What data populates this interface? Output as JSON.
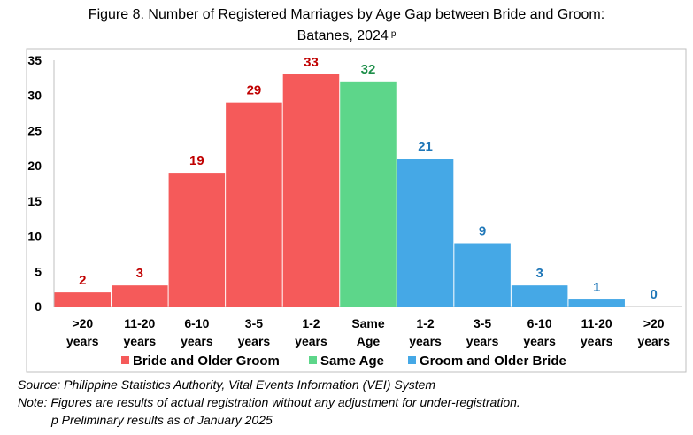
{
  "title_line1": "Figure 8. Number of Registered Marriages by Age Gap between Bride and Groom:",
  "title_line2": "Batanes, 2024",
  "title_mark": "p",
  "chart_data": {
    "type": "bar",
    "categories": [
      ">20 years",
      "11-20 years",
      "6-10 years",
      "3-5 years",
      "1-2 years",
      "Same Age",
      "1-2 years",
      "3-5 years",
      "6-10 years",
      "11-20 years",
      ">20 years"
    ],
    "category_lines": [
      [
        ">20",
        "years"
      ],
      [
        "11-20",
        "years"
      ],
      [
        "6-10",
        "years"
      ],
      [
        "3-5",
        "years"
      ],
      [
        "1-2",
        "years"
      ],
      [
        "Same",
        "Age"
      ],
      [
        "1-2",
        "years"
      ],
      [
        "3-5",
        "years"
      ],
      [
        "6-10",
        "years"
      ],
      [
        "11-20",
        "years"
      ],
      [
        ">20",
        "years"
      ]
    ],
    "values": [
      2,
      3,
      19,
      29,
      33,
      32,
      21,
      9,
      3,
      1,
      0
    ],
    "groups": [
      0,
      0,
      0,
      0,
      0,
      1,
      2,
      2,
      2,
      2,
      2
    ],
    "series": [
      {
        "name": "Bride and Older Groom",
        "color": "#F55A5A",
        "label_color": "#C00000"
      },
      {
        "name": "Same Age",
        "color": "#5DD68A",
        "label_color": "#1E8F4A"
      },
      {
        "name": "Groom and Older Bride",
        "color": "#45A8E6",
        "label_color": "#1F77B8"
      }
    ],
    "ylim": [
      0,
      35
    ],
    "yticks": [
      0,
      5,
      10,
      15,
      20,
      25,
      30,
      35
    ],
    "grid": false,
    "legend_position": "bottom"
  },
  "footnotes": {
    "source": "Source: Philippine Statistics Authority, Vital Events Information (VEI) System",
    "note": "Note: Figures are results of actual registration without any adjustment for under-registration.",
    "preliminary": "p Preliminary results as of January 2025"
  }
}
